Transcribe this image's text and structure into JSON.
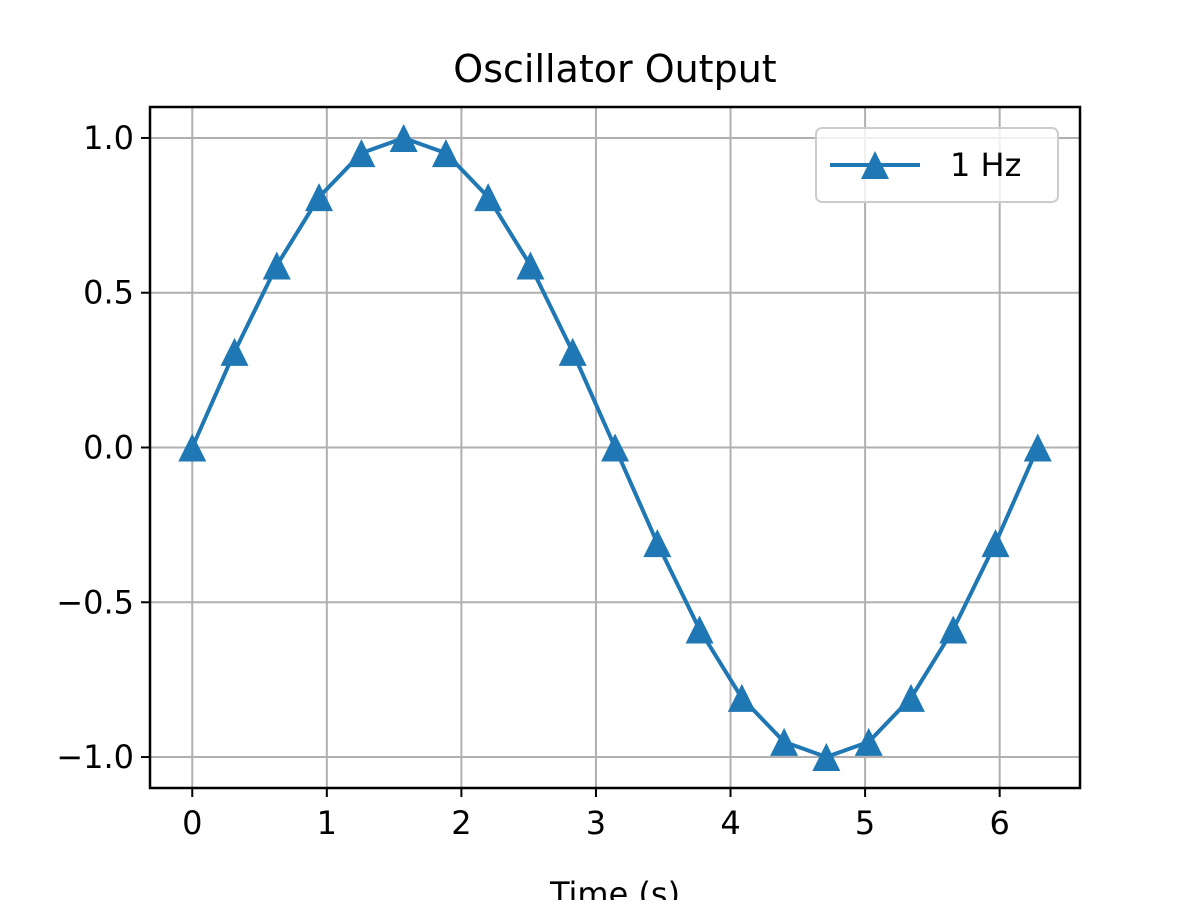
{
  "chart_data": {
    "type": "line",
    "title": "Oscillator Output",
    "xlabel": "Time (s)",
    "ylabel": "",
    "xlim": [
      -0.314,
      6.597
    ],
    "ylim": [
      -1.1,
      1.1
    ],
    "xticks": [
      0,
      1,
      2,
      3,
      4,
      5,
      6
    ],
    "xtick_labels": [
      "0",
      "1",
      "2",
      "3",
      "4",
      "5",
      "6"
    ],
    "yticks": [
      -1.0,
      -0.5,
      0.0,
      0.5,
      1.0
    ],
    "ytick_labels": [
      "−1.0",
      "−0.5",
      "0.0",
      "0.5",
      "1.0"
    ],
    "grid": true,
    "legend": {
      "location": "top-right",
      "entries": [
        "1 Hz"
      ]
    },
    "series": [
      {
        "name": "1 Hz",
        "color": "#1f77b4",
        "marker": "triangle-up",
        "x": [
          0.0,
          0.314,
          0.628,
          0.942,
          1.257,
          1.571,
          1.885,
          2.199,
          2.513,
          2.827,
          3.142,
          3.456,
          3.77,
          4.084,
          4.398,
          4.712,
          5.027,
          5.341,
          5.655,
          5.969,
          6.283
        ],
        "y": [
          0.0,
          0.309,
          0.588,
          0.809,
          0.951,
          1.0,
          0.951,
          0.809,
          0.588,
          0.309,
          0.0,
          -0.309,
          -0.588,
          -0.809,
          -0.951,
          -1.0,
          -0.951,
          -0.809,
          -0.588,
          -0.309,
          0.0
        ]
      }
    ]
  }
}
